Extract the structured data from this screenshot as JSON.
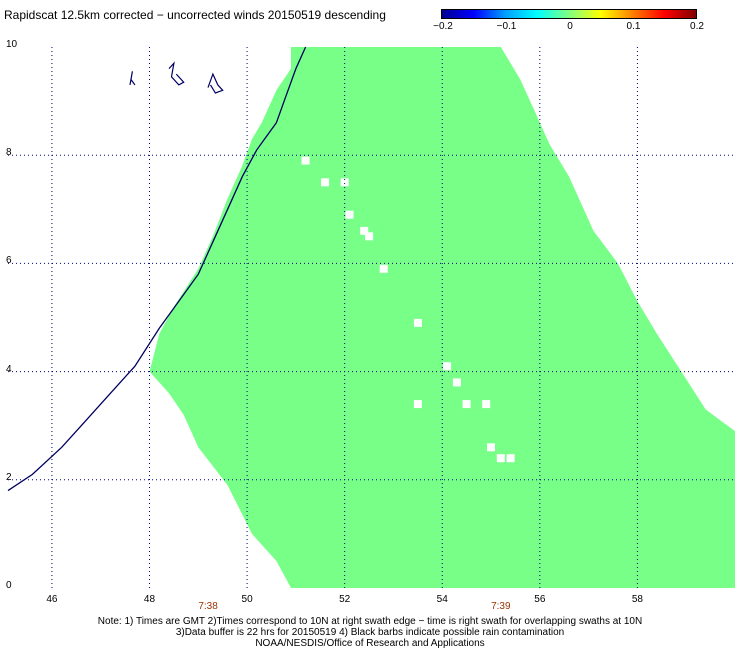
{
  "title": "Rapidscat 12.5km corrected − uncorrected winds 20150519 descending",
  "colorbar": {
    "ticks": [
      "−0.2",
      "−0.1",
      "0",
      "0.1",
      "0.2"
    ],
    "colors": [
      "#000090",
      "#0000ff",
      "#00a0ff",
      "#00ffff",
      "#80ff80",
      "#ffff00",
      "#ff8000",
      "#ff0000",
      "#800000"
    ]
  },
  "axes": {
    "x_ticks": [
      "46",
      "48",
      "50",
      "52",
      "54",
      "56",
      "58"
    ],
    "y_ticks": [
      "0",
      "2",
      "4",
      "6",
      "8",
      "10"
    ]
  },
  "times": [
    "7:38",
    "7:39"
  ],
  "notes": [
    "Note: 1) Times are GMT 2)Times correspond to 10N at right swath edge − time is right swath for overlapping swaths at 10N",
    "3)Data buffer is 22 hrs for 20150519 4) Black barbs indicate possible rain contamination",
    "NOAA/NESDIS/Office of Research and Applications"
  ],
  "map_colors": {
    "swath": "#77ff88",
    "coast": "#000060",
    "grid": "#000080"
  },
  "chart_data": {
    "type": "heatmap",
    "title": "Rapidscat 12.5km corrected − uncorrected winds 20150519 descending",
    "xlim": [
      45.1,
      60.0
    ],
    "ylim": [
      0,
      10
    ],
    "x_ticks": [
      46,
      48,
      50,
      52,
      54,
      56,
      58
    ],
    "y_ticks": [
      0,
      2,
      4,
      6,
      8,
      10
    ],
    "value_range": [
      -0.2,
      0.2
    ],
    "swath_value": 0.0,
    "swath_boundary": [
      [
        50.9,
        10
      ],
      [
        50.9,
        9.6
      ],
      [
        50.6,
        9.2
      ],
      [
        50.3,
        8.6
      ],
      [
        50.1,
        8.3
      ],
      [
        49.9,
        7.8
      ],
      [
        49.6,
        7.2
      ],
      [
        49.3,
        6.5
      ],
      [
        49.0,
        5.9
      ],
      [
        48.5,
        5.2
      ],
      [
        48.2,
        4.7
      ],
      [
        48.0,
        4.0
      ],
      [
        48.4,
        3.6
      ],
      [
        48.7,
        3.2
      ],
      [
        49.0,
        2.6
      ],
      [
        49.6,
        1.9
      ],
      [
        50.1,
        1.0
      ],
      [
        50.6,
        0.5
      ],
      [
        50.9,
        0
      ],
      [
        60.0,
        0
      ],
      [
        60.0,
        2.9
      ],
      [
        59.4,
        3.3
      ],
      [
        58.9,
        4.0
      ],
      [
        58.4,
        4.7
      ],
      [
        58.0,
        5.3
      ],
      [
        57.6,
        6.0
      ],
      [
        57.1,
        6.6
      ],
      [
        56.6,
        7.6
      ],
      [
        56.2,
        8.2
      ],
      [
        55.9,
        8.8
      ],
      [
        55.6,
        9.4
      ],
      [
        55.2,
        10
      ]
    ],
    "missing_cells": [
      [
        51.2,
        7.9
      ],
      [
        51.6,
        7.5
      ],
      [
        52.0,
        7.5
      ],
      [
        52.1,
        6.9
      ],
      [
        52.4,
        6.6
      ],
      [
        52.5,
        6.5
      ],
      [
        52.8,
        5.9
      ],
      [
        53.5,
        4.9
      ],
      [
        54.1,
        4.1
      ],
      [
        54.3,
        3.8
      ],
      [
        53.5,
        3.4
      ],
      [
        54.5,
        3.4
      ],
      [
        54.9,
        3.4
      ],
      [
        55.0,
        2.6
      ],
      [
        55.2,
        2.4
      ],
      [
        55.4,
        2.4
      ]
    ],
    "coastline": [
      [
        45.1,
        1.8
      ],
      [
        45.6,
        2.1
      ],
      [
        46.2,
        2.6
      ],
      [
        46.7,
        3.1
      ],
      [
        47.2,
        3.6
      ],
      [
        47.7,
        4.1
      ],
      [
        48.2,
        4.8
      ],
      [
        48.6,
        5.3
      ],
      [
        49.0,
        5.8
      ],
      [
        49.3,
        6.4
      ],
      [
        49.6,
        7.0
      ],
      [
        49.9,
        7.6
      ],
      [
        50.2,
        8.1
      ],
      [
        50.6,
        8.6
      ],
      [
        50.8,
        9.1
      ],
      [
        51.0,
        9.6
      ],
      [
        51.2,
        10
      ]
    ],
    "islands": [
      [
        [
          47.6,
          9.3
        ],
        [
          47.65,
          9.55
        ],
        [
          47.62,
          9.4
        ],
        [
          47.7,
          9.3
        ]
      ],
      [
        [
          48.4,
          9.6
        ],
        [
          48.5,
          9.7
        ],
        [
          48.45,
          9.45
        ],
        [
          48.6,
          9.3
        ],
        [
          48.7,
          9.35
        ],
        [
          48.55,
          9.5
        ]
      ],
      [
        [
          49.2,
          9.25
        ],
        [
          49.3,
          9.5
        ],
        [
          49.4,
          9.3
        ],
        [
          49.5,
          9.2
        ],
        [
          49.35,
          9.15
        ],
        [
          49.25,
          9.3
        ]
      ]
    ]
  }
}
